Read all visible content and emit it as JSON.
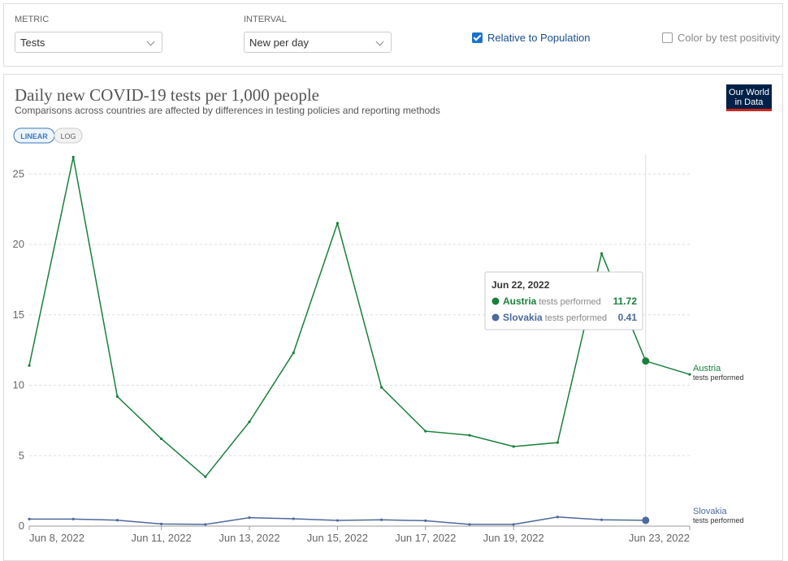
{
  "controls": {
    "metric_label": "METRIC",
    "metric_value": "Tests",
    "interval_label": "INTERVAL",
    "interval_value": "New per day",
    "relative_label": "Relative to Population",
    "relative_checked": true,
    "positivity_label": "Color by test positivity",
    "positivity_checked": false
  },
  "logo": {
    "line1": "Our World",
    "line2": "in Data"
  },
  "scale_buttons": {
    "linear": "LINEAR",
    "log": "LOG",
    "active": "linear"
  },
  "chart_data": {
    "type": "line",
    "title": "Daily new COVID-19 tests per 1,000 people",
    "subtitle": "Comparisons across countries are affected by differences in testing policies and reporting methods",
    "metric_label": "tests performed",
    "x": [
      "Jun 8, 2022",
      "Jun 9, 2022",
      "Jun 10, 2022",
      "Jun 11, 2022",
      "Jun 12, 2022",
      "Jun 13, 2022",
      "Jun 14, 2022",
      "Jun 15, 2022",
      "Jun 16, 2022",
      "Jun 17, 2022",
      "Jun 18, 2022",
      "Jun 19, 2022",
      "Jun 20, 2022",
      "Jun 21, 2022",
      "Jun 22, 2022",
      "Jun 23, 2022"
    ],
    "xticks": [
      "Jun 8, 2022",
      "Jun 11, 2022",
      "Jun 13, 2022",
      "Jun 15, 2022",
      "Jun 17, 2022",
      "Jun 19, 2022",
      "Jun 23, 2022"
    ],
    "series": [
      {
        "name": "Austria",
        "color": "#18803c",
        "values": [
          11.4,
          26.2,
          9.2,
          6.2,
          3.5,
          7.4,
          12.3,
          21.5,
          9.85,
          6.74,
          6.45,
          5.65,
          5.93,
          19.35,
          11.72,
          10.77
        ]
      },
      {
        "name": "Slovakia",
        "color": "#4c6a9c",
        "values": [
          0.5,
          0.5,
          0.42,
          0.15,
          0.12,
          0.6,
          0.52,
          0.4,
          0.45,
          0.38,
          0.12,
          0.12,
          0.65,
          0.45,
          0.41,
          null
        ]
      }
    ],
    "ylim": [
      0,
      26.4
    ],
    "yticks": [
      0,
      5,
      10,
      15,
      20,
      25
    ],
    "grid": true,
    "tooltip": {
      "index": 14
    }
  }
}
